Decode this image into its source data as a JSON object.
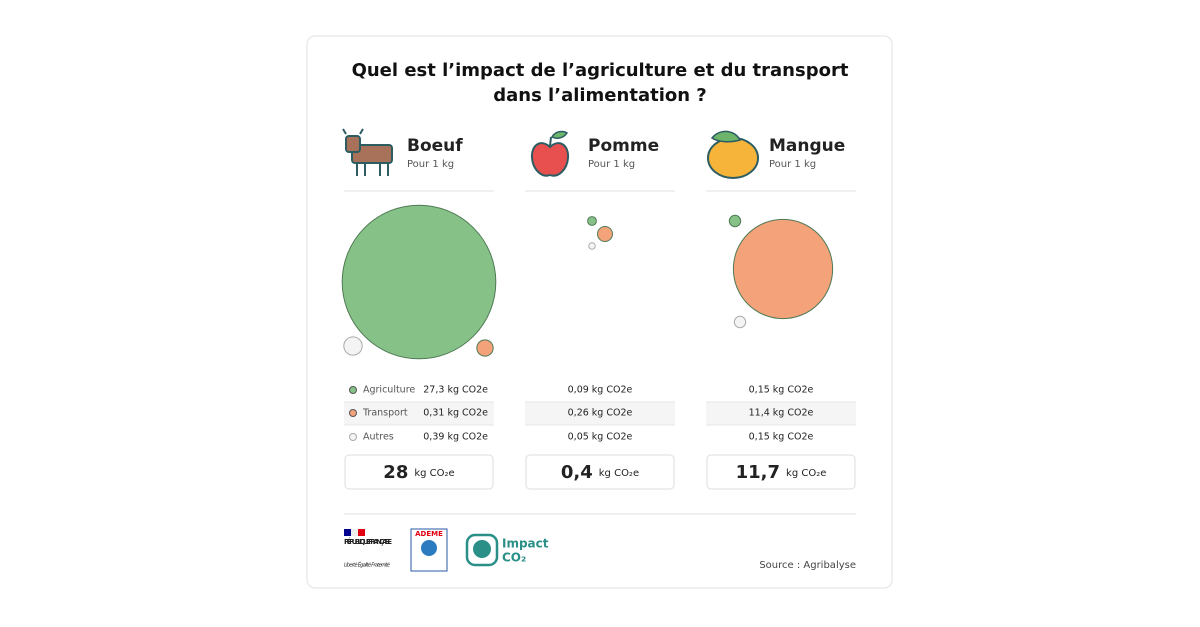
{
  "title": "Quel est l’impact de l’agriculture et du transport dans l’alimentation ?",
  "legend": [
    {
      "name": "Agriculture",
      "color": "#86c287"
    },
    {
      "name": "Transport",
      "color": "#f4a27a"
    },
    {
      "name": "Autres",
      "color": "#f4f4f4"
    }
  ],
  "items": [
    {
      "name": "Boeuf",
      "subtitle": "Pour 1 kg",
      "values": [
        27.3,
        0.31,
        0.39
      ],
      "value_labels": [
        "27,3 kg CO2e",
        "0,31 kg CO2e",
        "0,39 kg CO2e"
      ],
      "total": 28,
      "total_label": "28",
      "total_unit": "kg CO₂e"
    },
    {
      "name": "Pomme",
      "subtitle": "Pour 1 kg",
      "values": [
        0.09,
        0.26,
        0.05
      ],
      "value_labels": [
        "0,09 kg CO2e",
        "0,26 kg CO2e",
        "0,05 kg CO2e"
      ],
      "total": 0.4,
      "total_label": "0,4",
      "total_unit": "kg CO₂e"
    },
    {
      "name": "Mangue",
      "subtitle": "Pour 1 kg",
      "values": [
        0.15,
        11.4,
        0.15
      ],
      "value_labels": [
        "0,15 kg CO2e",
        "11,4 kg CO2e",
        "0,15 kg CO2e"
      ],
      "total": 11.7,
      "total_label": "11,7",
      "total_unit": "kg CO₂e"
    }
  ],
  "footer": {
    "republique": "RÉPUBLIQUE FRANÇAISE",
    "devise": "Liberté Égalité Fraternité",
    "ademe": "ADEME",
    "impact": "Impact",
    "co2": "CO₂",
    "source": "Source : Agribalyse"
  }
}
